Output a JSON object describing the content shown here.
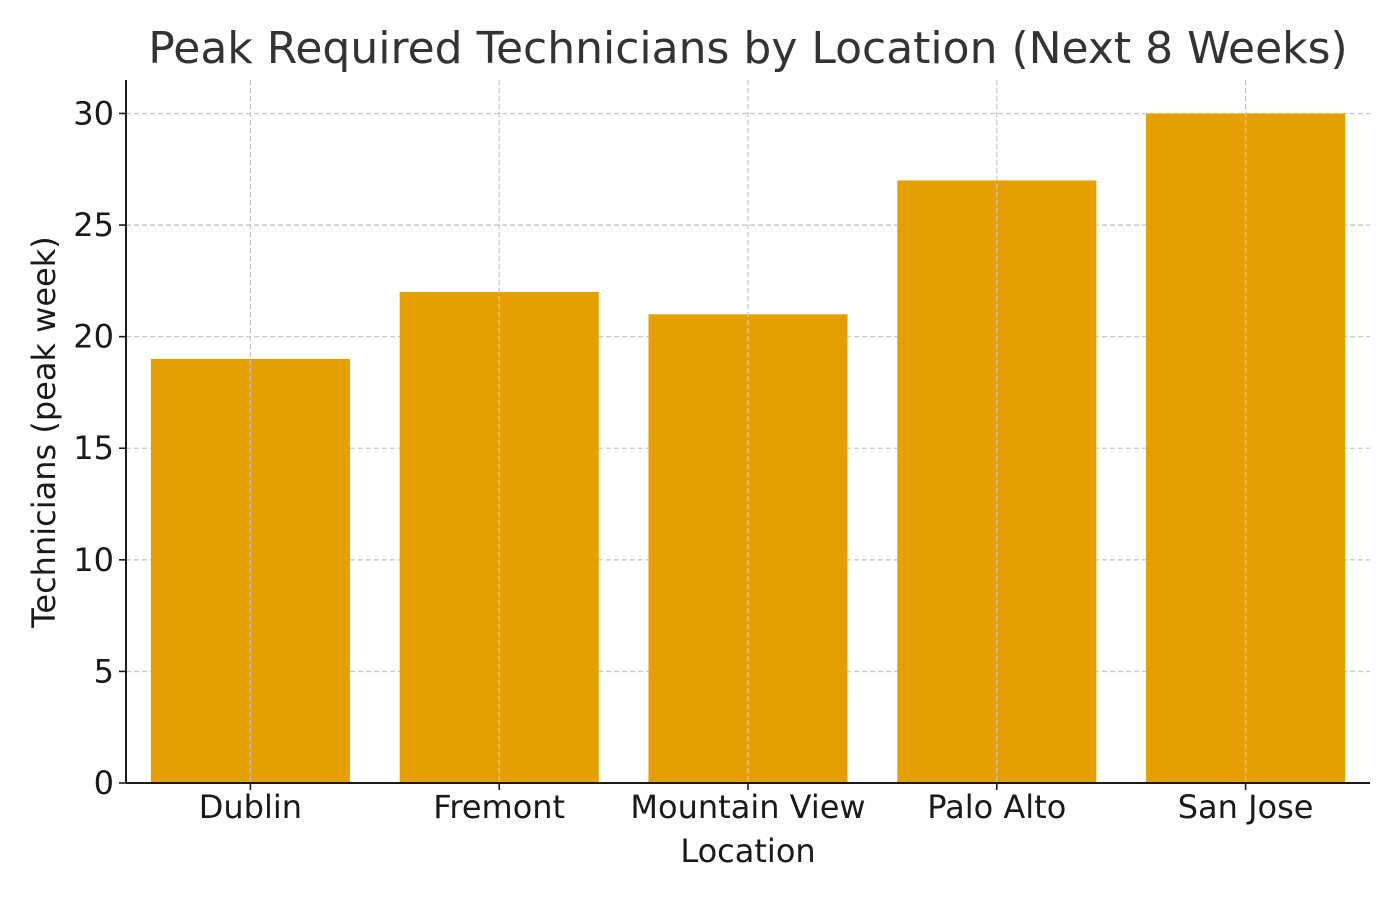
{
  "chart_data": {
    "type": "bar",
    "title": "Peak Required Technicians by Location (Next 8 Weeks)",
    "xlabel": "Location",
    "ylabel": "Technicians (peak week)",
    "categories": [
      "Dublin",
      "Fremont",
      "Mountain View",
      "Palo Alto",
      "San Jose"
    ],
    "values": [
      19,
      22,
      21,
      27,
      30
    ],
    "ylim": [
      0,
      31.5
    ],
    "yticks": [
      0,
      5,
      10,
      15,
      20,
      25,
      30
    ],
    "grid": true,
    "bar_color": "#e69f00",
    "grid_color": "#c8c8c8",
    "text_color": "#1a1a1a"
  }
}
